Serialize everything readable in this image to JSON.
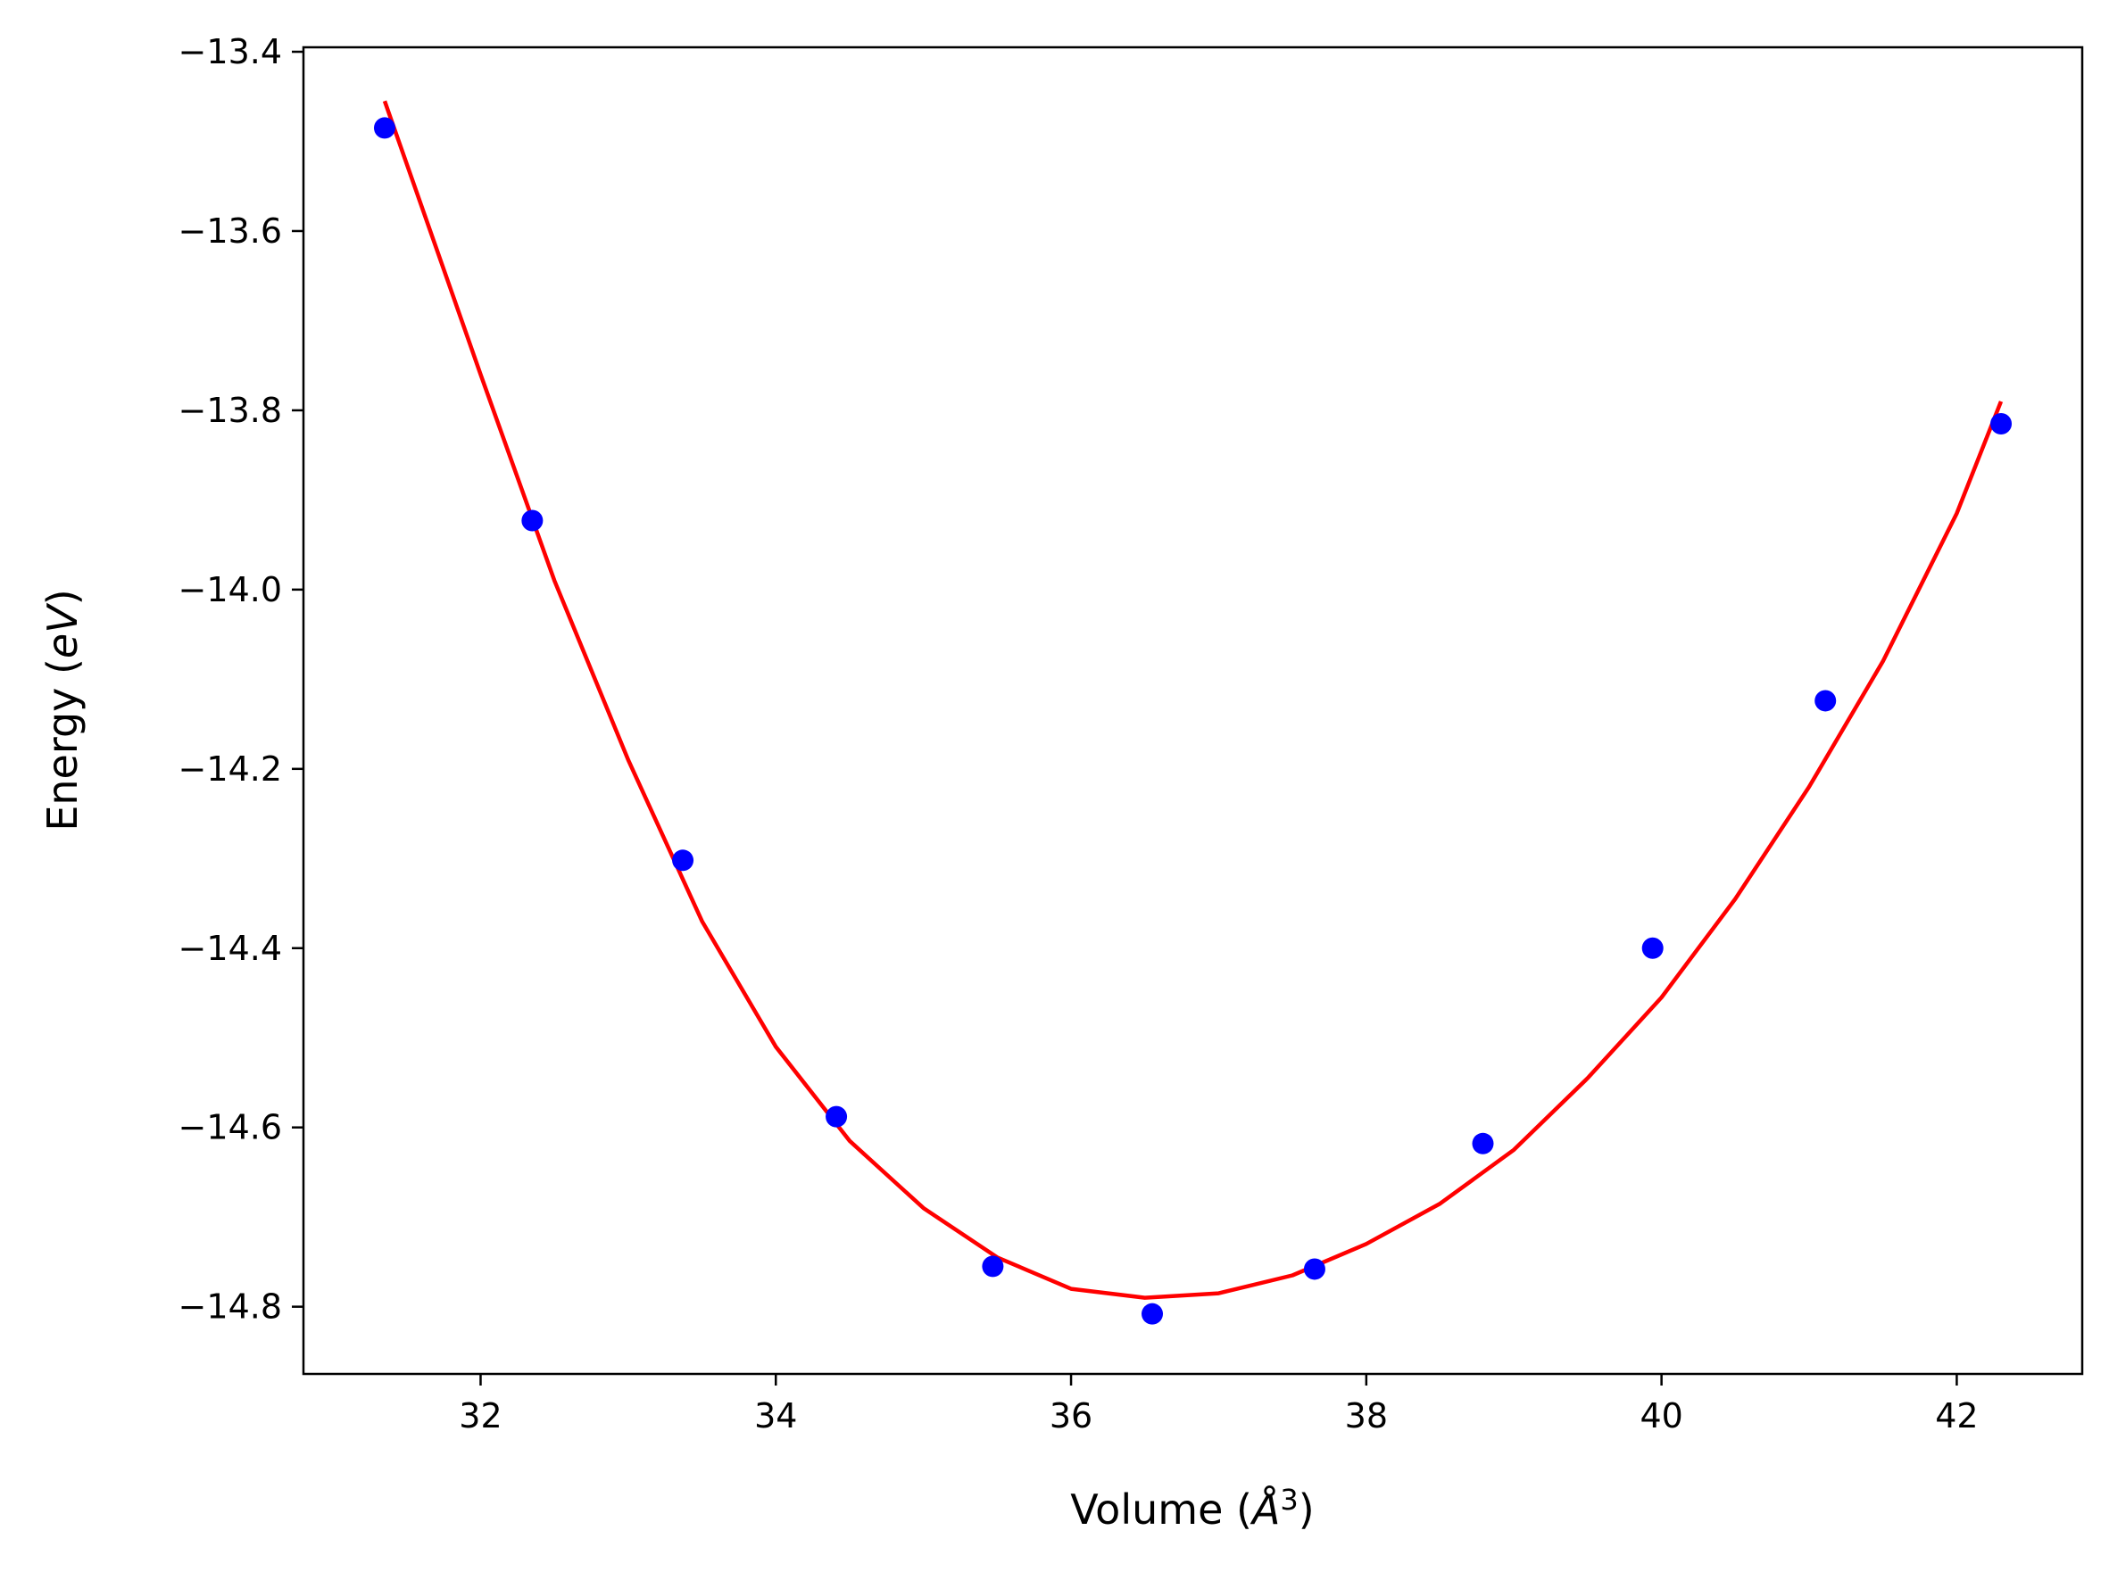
{
  "chart_data": {
    "type": "scatter",
    "xlabel": {
      "prefix": "Volume (",
      "symbol": "Å",
      "sup": "3",
      "suffix": ")"
    },
    "ylabel": {
      "prefix": "Energy (",
      "symbol": "eV",
      "suffix": ")"
    },
    "xlim": [
      30.8,
      42.85
    ],
    "ylim": [
      -14.875,
      -13.395
    ],
    "xticks": [
      32,
      34,
      36,
      38,
      40,
      42
    ],
    "yticks": [
      -13.4,
      -13.6,
      -13.8,
      -14.0,
      -14.2,
      -14.4,
      -14.6,
      -14.8
    ],
    "xtick_labels": [
      "32",
      "34",
      "36",
      "38",
      "40",
      "42"
    ],
    "ytick_labels": [
      "−13.4",
      "−13.6",
      "−13.8",
      "−14.0",
      "−14.2",
      "−14.4",
      "−14.6",
      "−14.8"
    ],
    "points": {
      "color": "#0000ff",
      "x": [
        31.35,
        32.35,
        33.37,
        34.41,
        35.47,
        36.55,
        37.65,
        38.79,
        39.94,
        41.11,
        42.3
      ],
      "y": [
        -13.485,
        -13.923,
        -14.302,
        -14.588,
        -14.755,
        -14.808,
        -14.758,
        -14.618,
        -14.4,
        -14.124,
        -13.815
      ]
    },
    "fit": {
      "color": "#ff0000",
      "x": [
        31.35,
        32.0,
        32.5,
        33.0,
        33.5,
        34.0,
        34.5,
        35.0,
        35.5,
        36.0,
        36.5,
        37.0,
        37.5,
        38.0,
        38.5,
        39.0,
        39.5,
        40.0,
        40.5,
        41.0,
        41.5,
        42.0,
        42.3
      ],
      "y": [
        -13.455,
        -13.76,
        -13.99,
        -14.19,
        -14.37,
        -14.51,
        -14.615,
        -14.69,
        -14.745,
        -14.78,
        -14.79,
        -14.785,
        -14.765,
        -14.73,
        -14.685,
        -14.625,
        -14.545,
        -14.455,
        -14.345,
        -14.22,
        -14.08,
        -13.915,
        -13.79
      ]
    }
  }
}
